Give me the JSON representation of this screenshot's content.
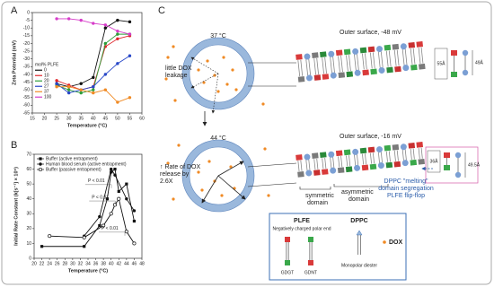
{
  "chart_data": [
    {
      "type": "line",
      "panel_label": "A",
      "y_label": "Zeta Potential (mV)",
      "x_label": "Temperature (°C)",
      "xlim": [
        15,
        60
      ],
      "xticks": [
        15,
        20,
        25,
        30,
        35,
        40,
        45,
        50,
        55,
        60
      ],
      "ylim": [
        -65,
        0
      ],
      "yticks": [
        0,
        -5,
        -10,
        -15,
        -20,
        -25,
        -30,
        -35,
        -40,
        -45,
        -50,
        -55,
        -60,
        -65
      ],
      "legend_title": "mol% PLFE",
      "x": [
        25,
        30,
        35,
        40,
        45,
        50,
        55
      ],
      "series": [
        {
          "name": "0",
          "color": "#111111",
          "values": [
            -46,
            -48,
            -46,
            -42,
            -10,
            -5,
            -6
          ]
        },
        {
          "name": "10",
          "color": "#e0242a",
          "values": [
            -44,
            -47,
            -50,
            -48,
            -22,
            -17,
            -15
          ]
        },
        {
          "name": "20",
          "color": "#2e9e3a",
          "values": [
            -47,
            -50,
            -52,
            -50,
            -20,
            -14,
            -14
          ]
        },
        {
          "name": "27",
          "color": "#2747c8",
          "values": [
            -46,
            -52,
            -50,
            -48,
            -40,
            -33,
            -28
          ]
        },
        {
          "name": "37",
          "color": "#f08a24",
          "values": [
            -48,
            -48,
            -50,
            -52,
            -50,
            -58,
            -55
          ]
        },
        {
          "name": "100",
          "color": "#d63cc9",
          "values": [
            -4,
            -4,
            -5,
            -7,
            -8,
            -12,
            -14
          ]
        }
      ]
    },
    {
      "type": "line",
      "panel_label": "B",
      "y_label": "Initial Rate Constant (k[s⁻¹] × 10⁵)",
      "x_label": "Temperature (°C)",
      "xlim": [
        20,
        48
      ],
      "xticks": [
        20,
        22,
        24,
        26,
        28,
        30,
        32,
        34,
        36,
        38,
        40,
        42,
        44,
        46,
        48
      ],
      "ylim": [
        0,
        70
      ],
      "yticks": [
        0,
        10,
        20,
        30,
        40,
        50,
        60,
        70
      ],
      "annotations": [
        "P < 0.01",
        "P < 0.01",
        "P < 0.01"
      ],
      "series": [
        {
          "name": "Buffer (active entrapment)",
          "color": "#111111",
          "marker": "square",
          "x": [
            22,
            33,
            37,
            39,
            40,
            41,
            42,
            44,
            46
          ],
          "values": [
            8,
            8,
            22,
            40,
            58,
            60,
            45,
            50,
            25
          ]
        },
        {
          "name": "Human blood serum (active entrapment)",
          "color": "#111111",
          "marker": "circle",
          "x": [
            33,
            37,
            40,
            41,
            44,
            46
          ],
          "values": [
            15,
            28,
            60,
            56,
            40,
            32
          ]
        },
        {
          "name": "Buffer (passive entrapment)",
          "color": "#111111",
          "marker": "open",
          "x": [
            24,
            33,
            38,
            40,
            41,
            42,
            44,
            46
          ],
          "values": [
            15,
            14,
            22,
            30,
            36,
            40,
            18,
            10
          ]
        }
      ]
    }
  ],
  "diagram": {
    "panel_label": "C",
    "state_1": {
      "temperature": "37 °C",
      "note": [
        "little DOX",
        "leakage"
      ],
      "surface": "Outer surface, -48 mV",
      "thickness": [
        "55Å",
        "49Å"
      ]
    },
    "state_2": {
      "temperature": "44 °C",
      "note": [
        "↑ Rate of DOX",
        "release by",
        "2.6X"
      ],
      "surface": "Outer surface, -16 mV",
      "thickness": [
        "36Å",
        "49.5Å"
      ],
      "domains": [
        [
          "symmetric",
          "domain"
        ],
        [
          "asymmetric",
          "domain"
        ]
      ]
    },
    "mechanism": [
      "DPPC \"melting\"",
      "domain segregation",
      "PLFE flip-flop"
    ],
    "legend": {
      "plfe": "PLFE",
      "plfe_note": "Negatively charged polar end",
      "plfe_types": [
        "GDGT",
        "GDNT"
      ],
      "dppc": "DPPC",
      "dppc_note": "Monopolar diester",
      "dox": "DOX"
    }
  }
}
